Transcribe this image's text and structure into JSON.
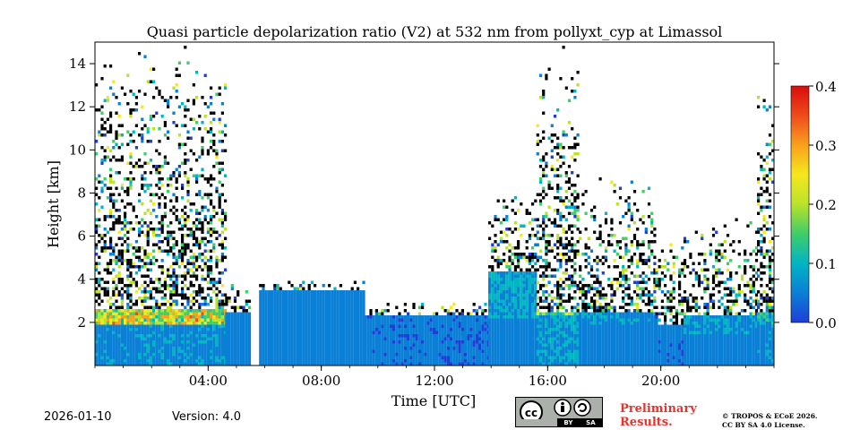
{
  "chart_data": {
    "type": "heatmap",
    "title": "Quasi particle depolarization ratio (V2) at 532 nm from pollyxt_cyp at Limassol",
    "xlabel": "Time [UTC]",
    "ylabel": "Height [km]",
    "xlim_hours": [
      0,
      24
    ],
    "ylim_km": [
      0,
      15
    ],
    "x_ticks": [
      {
        "value": 4,
        "label": "04:00"
      },
      {
        "value": 8,
        "label": "08:00"
      },
      {
        "value": 12,
        "label": "12:00"
      },
      {
        "value": 16,
        "label": "16:00"
      },
      {
        "value": 20,
        "label": "20:00"
      }
    ],
    "y_ticks": [
      {
        "value": 2,
        "label": "2"
      },
      {
        "value": 4,
        "label": "4"
      },
      {
        "value": 6,
        "label": "6"
      },
      {
        "value": 8,
        "label": "8"
      },
      {
        "value": 10,
        "label": "10"
      },
      {
        "value": 12,
        "label": "12"
      },
      {
        "value": 14,
        "label": "14"
      }
    ],
    "colorbar": {
      "range": [
        0,
        0.4
      ],
      "ticks": [
        {
          "value": 0.0,
          "label": "0.0"
        },
        {
          "value": 0.1,
          "label": "0.1"
        },
        {
          "value": 0.2,
          "label": "0.2"
        },
        {
          "value": 0.3,
          "label": "0.3"
        },
        {
          "value": 0.4,
          "label": "0.4"
        }
      ],
      "colormap": [
        "#1f3ed8",
        "#0a7fd6",
        "#00b5c4",
        "#3fcd6a",
        "#b9e32a",
        "#f5e81c",
        "#f9a11b",
        "#ef4b1c",
        "#d90c0c"
      ]
    },
    "profile": {
      "note": "approximate vertical structure per time block",
      "blocks": [
        {
          "t_start": 0.0,
          "t_end": 4.6,
          "boundary_layer_top_km": 2.0,
          "bl_value": 0.05,
          "aerosol_layer_top_km": 2.7,
          "aerosol_value": 0.22,
          "noise_top_km": 14.9
        },
        {
          "t_start": 4.6,
          "t_end": 5.5,
          "boundary_layer_top_km": 2.5,
          "bl_value": 0.03,
          "aerosol_layer_top_km": 2.6,
          "aerosol_value": 0.08,
          "noise_top_km": 4.0
        },
        {
          "t_start": 5.8,
          "t_end": 9.5,
          "boundary_layer_top_km": 2.6,
          "bl_value": 0.03,
          "aerosol_layer_top_km": 3.5,
          "aerosol_value": 0.05,
          "noise_top_km": 4.0
        },
        {
          "t_start": 9.5,
          "t_end": 13.9,
          "boundary_layer_top_km": 2.0,
          "bl_value": 0.02,
          "aerosol_layer_top_km": 2.4,
          "aerosol_value": 0.04,
          "noise_top_km": 3.0
        },
        {
          "t_start": 13.9,
          "t_end": 15.6,
          "boundary_layer_top_km": 2.2,
          "bl_value": 0.04,
          "aerosol_layer_top_km": 4.5,
          "aerosol_value": 0.08,
          "noise_top_km": 8.0
        },
        {
          "t_start": 15.6,
          "t_end": 17.1,
          "boundary_layer_top_km": 2.4,
          "bl_value": 0.06,
          "aerosol_layer_top_km": 2.6,
          "aerosol_value": 0.18,
          "noise_top_km": 15.0
        },
        {
          "t_start": 17.1,
          "t_end": 19.8,
          "boundary_layer_top_km": 2.0,
          "bl_value": 0.03,
          "aerosol_layer_top_km": 2.5,
          "aerosol_value": 0.06,
          "noise_top_km": 9.0
        },
        {
          "t_start": 19.8,
          "t_end": 20.8,
          "boundary_layer_top_km": 1.2,
          "bl_value": 0.02,
          "aerosol_layer_top_km": 2.0,
          "aerosol_value": 0.05,
          "noise_top_km": 6.0
        },
        {
          "t_start": 20.8,
          "t_end": 23.4,
          "boundary_layer_top_km": 1.5,
          "bl_value": 0.03,
          "aerosol_layer_top_km": 2.4,
          "aerosol_value": 0.07,
          "noise_top_km": 7.0
        },
        {
          "t_start": 23.4,
          "t_end": 24.0,
          "boundary_layer_top_km": 2.0,
          "bl_value": 0.05,
          "aerosol_layer_top_km": 2.5,
          "aerosol_value": 0.12,
          "noise_top_km": 13.0
        }
      ],
      "gaps_hours": [
        [
          5.5,
          5.75
        ]
      ]
    }
  },
  "footer": {
    "date": "2026-01-10",
    "version": "Version: 4.0",
    "prelim_line1": "Preliminary",
    "prelim_line2": "Results.",
    "copyright_line1": "© TROPOS & ECoE 2026.",
    "copyright_line2": "CC BY SA 4.0 License.",
    "cc_by": "BY",
    "cc_sa": "SA"
  }
}
